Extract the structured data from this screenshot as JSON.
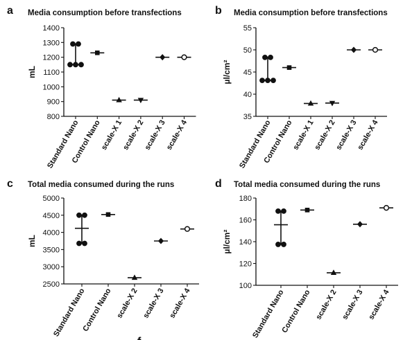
{
  "chart_data": [
    {
      "panel": "a",
      "type": "scatter",
      "title": "Media consumption before transfections",
      "ylabel": "mL",
      "ylim": [
        800,
        1400
      ],
      "yticks": [
        800,
        900,
        1000,
        1100,
        1200,
        1300,
        1400
      ],
      "categories": [
        "Standard Nano",
        "Control Nano",
        "scale-X 1",
        "scale-X 2",
        "scale-X 3",
        "scale-X 4"
      ],
      "points": [
        [
          1290,
          1290,
          1150,
          1150,
          1150
        ],
        [
          1230
        ],
        [
          910
        ],
        [
          910
        ],
        [
          1200
        ],
        [
          1200
        ]
      ],
      "center": [
        1150,
        1230,
        910,
        910,
        1200,
        1200
      ],
      "range": [
        [
          1150,
          1290
        ],
        null,
        null,
        null,
        null,
        null
      ],
      "markers": [
        "circle",
        "square",
        "triangle-up",
        "triangle-down",
        "diamond",
        "open-circle"
      ]
    },
    {
      "panel": "b",
      "type": "scatter",
      "title": "Media consumption before transfections",
      "ylabel": "µl/cm²",
      "ylim": [
        35,
        55
      ],
      "yticks": [
        35,
        40,
        45,
        50,
        55
      ],
      "categories": [
        "Standard Nano",
        "Control Nano",
        "scale-X 1",
        "scale-X 2",
        "scale-X 3",
        "scale-X 4"
      ],
      "points": [
        [
          48.3,
          48.3,
          43.1,
          43.1,
          43.1
        ],
        [
          46
        ],
        [
          37.9
        ],
        [
          38
        ],
        [
          50
        ],
        [
          50
        ]
      ],
      "center": [
        43.1,
        46,
        37.9,
        38,
        50,
        50
      ],
      "range": [
        [
          43.1,
          48.3
        ],
        null,
        null,
        null,
        null,
        null
      ],
      "markers": [
        "circle",
        "square",
        "triangle-up",
        "triangle-down",
        "diamond",
        "open-circle"
      ]
    },
    {
      "panel": "c",
      "type": "scatter",
      "title": "Total media consumed during the runs",
      "ylabel": "mL",
      "ylim": [
        2500,
        5000
      ],
      "yticks": [
        2500,
        3000,
        3500,
        4000,
        4500,
        5000
      ],
      "categories": [
        "Standard Nano",
        "Control Nano",
        "scale-X 2",
        "scale-X 3",
        "scale-X 4"
      ],
      "points": [
        [
          4500,
          4500,
          3680,
          3680
        ],
        [
          4520
        ],
        [
          2680
        ],
        [
          3750
        ],
        [
          4100
        ]
      ],
      "center": [
        4120,
        4520,
        2680,
        3750,
        4100
      ],
      "range": [
        [
          3680,
          4500
        ],
        null,
        null,
        null,
        null
      ],
      "markers": [
        "circle",
        "square",
        "triangle-up",
        "diamond",
        "open-circle"
      ]
    },
    {
      "panel": "d",
      "type": "scatter",
      "title": "Total media consumed during the runs",
      "ylabel": "µl/cm²",
      "ylim": [
        100,
        180
      ],
      "yticks": [
        100,
        120,
        140,
        160,
        180
      ],
      "categories": [
        "Standard Nano",
        "Control Nano",
        "scale-X 2",
        "scale-X 3",
        "scale-X 4"
      ],
      "points": [
        [
          168,
          168,
          137.5,
          137.5
        ],
        [
          169
        ],
        [
          111.5
        ],
        [
          156
        ],
        [
          171
        ]
      ],
      "center": [
        155.5,
        169,
        111.5,
        156,
        171
      ],
      "range": [
        [
          137.5,
          168
        ],
        null,
        null,
        null,
        null
      ],
      "markers": [
        "circle",
        "square",
        "triangle-up",
        "diamond",
        "open-circle"
      ]
    }
  ],
  "bottom_letter": "f"
}
